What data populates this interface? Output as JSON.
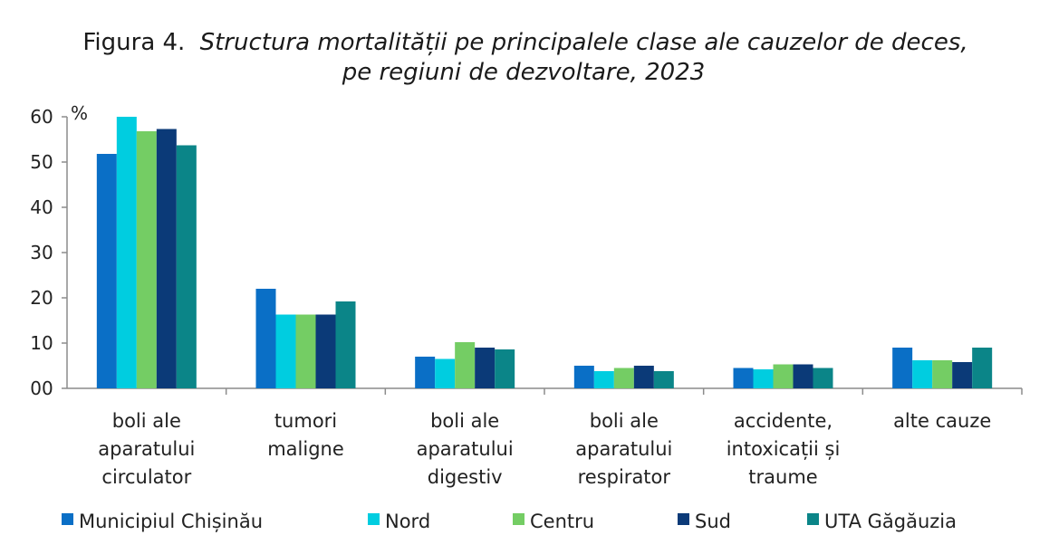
{
  "chart_data": {
    "type": "bar",
    "title_prefix": "Figura 4.",
    "title_line1": "Structura mortalității pe principalele clase ale cauzelor de deces,",
    "title_line2": "pe regiuni de dezvoltare, 2023",
    "ylabel": "%",
    "ylim": [
      0,
      60
    ],
    "yticks": [
      "00",
      "10",
      "20",
      "30",
      "40",
      "50",
      "60"
    ],
    "grid": false,
    "legend_position": "bottom",
    "categories": [
      [
        "boli ale",
        "aparatului",
        "circulator"
      ],
      [
        "tumori",
        "maligne"
      ],
      [
        "boli ale",
        "aparatului",
        "digestiv"
      ],
      [
        "boli ale",
        "aparatului",
        "respirator"
      ],
      [
        "accidente,",
        "intoxicații și",
        "traume"
      ],
      [
        "alte cauze"
      ]
    ],
    "series": [
      {
        "name": "Municipiul Chișinău",
        "color": "#0a6fc6",
        "values": [
          51.8,
          22.0,
          7.0,
          5.0,
          4.5,
          9.0
        ]
      },
      {
        "name": "Nord",
        "color": "#00cde0",
        "values": [
          60.0,
          16.3,
          6.5,
          3.8,
          4.2,
          6.2
        ]
      },
      {
        "name": "Centru",
        "color": "#74cd64",
        "values": [
          56.8,
          16.3,
          10.2,
          4.5,
          5.3,
          6.2
        ]
      },
      {
        "name": "Sud",
        "color": "#0b3a78",
        "values": [
          57.3,
          16.3,
          9.0,
          5.0,
          5.3,
          5.8
        ]
      },
      {
        "name": "UTA Găgăuzia",
        "color": "#0b8588",
        "values": [
          53.7,
          19.2,
          8.6,
          3.8,
          4.5,
          9.0
        ]
      }
    ]
  }
}
